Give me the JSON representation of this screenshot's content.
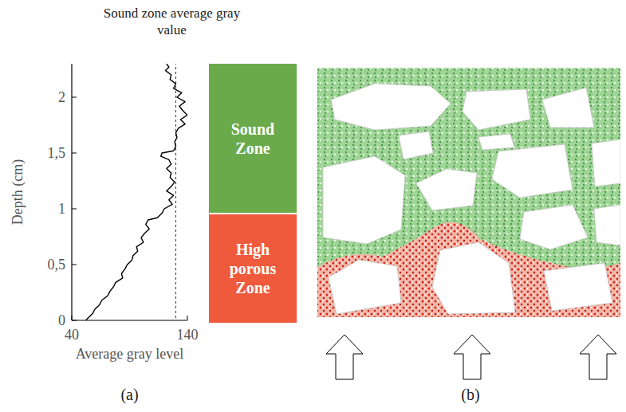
{
  "chart_data": {
    "type": "line",
    "x_label": "Average gray level",
    "y_label": "Depth (cm)",
    "x": [
      122,
      124,
      121,
      126,
      125,
      130,
      128,
      135,
      131,
      138,
      133,
      136,
      140,
      134,
      138,
      132,
      130,
      131,
      129,
      130,
      128,
      118,
      117,
      124,
      126,
      122,
      126,
      125,
      129,
      126,
      122,
      128,
      124,
      127,
      120,
      118,
      114,
      106,
      104,
      107,
      103,
      100,
      102,
      96,
      97,
      93,
      92,
      88,
      86,
      83,
      84,
      78,
      76,
      73,
      71,
      66,
      64,
      60,
      58,
      55,
      52
    ],
    "values": [
      2.3,
      2.27,
      2.24,
      2.2,
      2.16,
      2.12,
      2.08,
      2.04,
      2.0,
      1.96,
      1.92,
      1.88,
      1.84,
      1.8,
      1.76,
      1.72,
      1.68,
      1.64,
      1.6,
      1.56,
      1.52,
      1.5,
      1.47,
      1.44,
      1.4,
      1.36,
      1.32,
      1.28,
      1.24,
      1.2,
      1.16,
      1.12,
      1.08,
      1.04,
      1.0,
      0.96,
      0.92,
      0.9,
      0.86,
      0.82,
      0.78,
      0.74,
      0.7,
      0.66,
      0.62,
      0.58,
      0.54,
      0.5,
      0.46,
      0.42,
      0.38,
      0.34,
      0.3,
      0.26,
      0.22,
      0.18,
      0.14,
      0.1,
      0.06,
      0.03,
      0.0
    ],
    "color": "#000000",
    "xlim": [
      40,
      140
    ],
    "ylim": [
      0,
      2.3
    ],
    "xticks": [
      40,
      140
    ],
    "yticks": [
      0,
      {
        "value": 0.5,
        "label": "0,5"
      },
      1,
      {
        "value": 1.5,
        "label": "1,5"
      },
      2
    ],
    "grid": false,
    "annotations": [
      {
        "text": "Sound zone average gray value",
        "x": 130,
        "line_style": "dashed"
      }
    ]
  },
  "panels": {
    "a": "(a)",
    "b": "(b)"
  },
  "zones": [
    {
      "label": "Sound Zone",
      "color": "#6aaa4b"
    },
    {
      "label": "High porous Zone",
      "color": "#ef5a3c"
    }
  ]
}
